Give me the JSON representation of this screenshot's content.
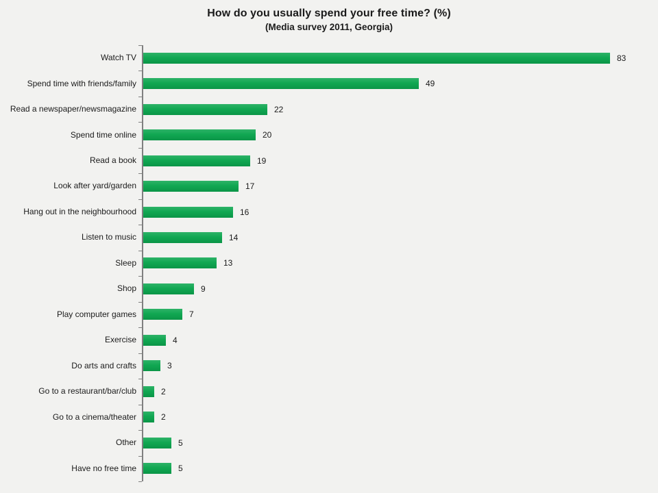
{
  "title": "How do you usually spend your free time? (%)",
  "subtitle": "(Media survey 2011, Georgia)",
  "colors": {
    "bar": "#0ca64f",
    "background": "#f2f2f0",
    "axis": "#7f7f7f",
    "text": "#1a1a1a"
  },
  "chart_data": {
    "type": "bar",
    "orientation": "horizontal",
    "title": "How do you usually spend your free time? (%)",
    "subtitle": "(Media survey 2011, Georgia)",
    "categories": [
      "Watch TV",
      "Spend time with friends/family",
      "Read a newspaper/newsmagazine",
      "Spend time online",
      "Read a book",
      "Look after yard/garden",
      "Hang out in the neighbourhood",
      "Listen to music",
      "Sleep",
      "Shop",
      "Play computer games",
      "Exercise",
      "Do arts and crafts",
      "Go to a restaurant/bar/club",
      "Go to a cinema/theater",
      "Other",
      "Have no free time"
    ],
    "values": [
      83,
      49,
      22,
      20,
      19,
      17,
      16,
      14,
      13,
      9,
      7,
      4,
      3,
      2,
      2,
      5,
      5
    ],
    "value_labels_shown": true,
    "xlim": [
      0,
      90
    ],
    "grid": false,
    "legend": false
  }
}
